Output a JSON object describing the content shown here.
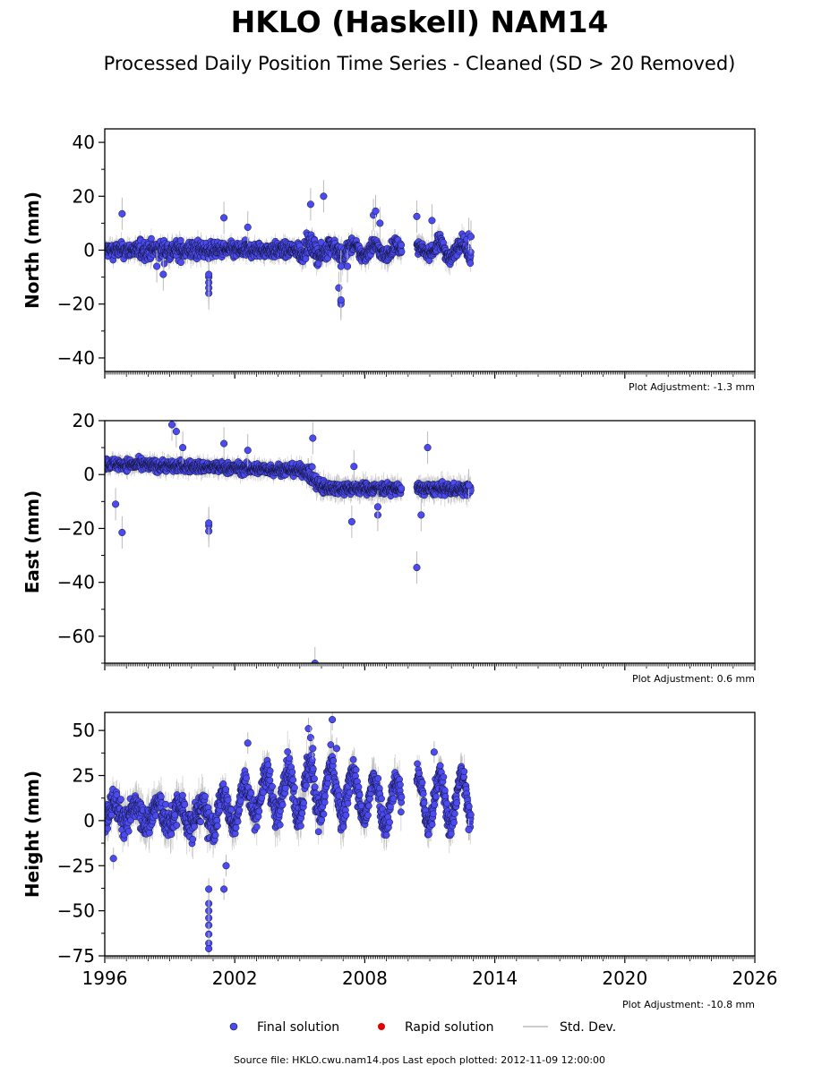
{
  "title": "HKLO (Haskell) NAM14",
  "subtitle": "Processed Daily Position Time Series - Cleaned (SD > 20 Removed)",
  "legend": {
    "final": "Final solution",
    "rapid": "Rapid solution",
    "std": "Std. Dev."
  },
  "source": "Source file: HKLO.cwu.nam14.pos  Last epoch plotted: 2012-11-09 12:00:00",
  "colors": {
    "final": "#4b4bf0",
    "rapid": "#e00000",
    "std": "#bbbbbb",
    "edge": "#111133"
  },
  "chart_data": [
    {
      "type": "scatter",
      "panel": "north",
      "ylabel": "North (mm)",
      "adjustment": "Plot Adjustment: -1.3 mm",
      "xlim": [
        1996,
        2026
      ],
      "ylim": [
        -45,
        45
      ],
      "yticks": [
        -40,
        -20,
        0,
        20,
        40
      ],
      "xticks": [
        1996,
        2002,
        2008,
        2014,
        2020,
        2026
      ],
      "series": [
        {
          "trend": [
            [
              1996,
              0
            ],
            [
              2012.86,
              0
            ]
          ],
          "points": [
            [
              1996.8,
              13.5
            ],
            [
              1998.7,
              -9
            ],
            [
              1998.4,
              -6
            ],
            [
              2000.8,
              -16
            ],
            [
              2000.8,
              -14
            ],
            [
              2000.8,
              -12
            ],
            [
              2000.8,
              -10
            ],
            [
              2000.8,
              -9
            ],
            [
              2001.5,
              12
            ],
            [
              2002.6,
              8.5
            ],
            [
              2005.5,
              17
            ],
            [
              2006.1,
              20
            ],
            [
              2006.8,
              -14
            ],
            [
              2006.9,
              -19
            ],
            [
              2006.9,
              -20
            ],
            [
              2006.9,
              -18.5
            ],
            [
              2006.9,
              -6
            ],
            [
              2007.2,
              -6
            ],
            [
              2008.4,
              13
            ],
            [
              2008.5,
              14.5
            ],
            [
              2008.7,
              10
            ],
            [
              2010.4,
              12.5
            ],
            [
              2011.1,
              11
            ],
            [
              2012.8,
              6
            ],
            [
              2012.9,
              5
            ]
          ],
          "segments": [
            [
              1996,
              1997.5,
              0,
              4,
              2
            ],
            [
              1997.5,
              2000.5,
              0,
              5,
              2.5
            ],
            [
              2000.5,
              2005,
              0,
              4,
              2
            ],
            [
              2005,
              2007,
              2,
              5,
              2.5
            ],
            [
              2007,
              2009.7,
              2,
              4,
              2.5
            ],
            [
              2010.4,
              2011.3,
              1,
              3,
              2.5
            ],
            [
              2011.3,
              2012.9,
              3,
              4,
              2.5
            ]
          ]
        }
      ]
    },
    {
      "type": "scatter",
      "panel": "east",
      "ylabel": "East (mm)",
      "adjustment": "Plot Adjustment: 0.6 mm",
      "xlim": [
        1996,
        2026
      ],
      "ylim": [
        -70,
        20
      ],
      "yticks": [
        -60,
        -40,
        -20,
        0,
        20
      ],
      "xticks": [
        1996,
        2002,
        2008,
        2014,
        2020,
        2026
      ],
      "series": [
        {
          "trend": [
            [
              1996,
              4
            ],
            [
              2005.3,
              1.5
            ],
            [
              2006,
              -5
            ],
            [
              2012.86,
              -5.5
            ]
          ],
          "points": [
            [
              1996.5,
              -11
            ],
            [
              1996.8,
              -21.5
            ],
            [
              1999.1,
              18.5
            ],
            [
              1999.3,
              16
            ],
            [
              1999.6,
              10
            ],
            [
              2000.8,
              -21
            ],
            [
              2000.8,
              -19
            ],
            [
              2000.8,
              -18
            ],
            [
              2001.5,
              11.5
            ],
            [
              2002.6,
              9
            ],
            [
              2005.6,
              13.5
            ],
            [
              2005.7,
              -70
            ],
            [
              2007.4,
              -17.5
            ],
            [
              2007.5,
              3
            ],
            [
              2008.6,
              -15
            ],
            [
              2008.6,
              -12
            ],
            [
              2010.4,
              -34.5
            ],
            [
              2010.6,
              -15
            ],
            [
              2010.9,
              10
            ],
            [
              2012.8,
              -4
            ]
          ],
          "segments": [
            [
              1996,
              2005.3,
              0,
              3,
              2
            ],
            [
              2005.3,
              2006.2,
              0,
              4,
              2.5
            ],
            [
              2006.2,
              2009.7,
              0,
              3,
              2.5
            ],
            [
              2010.4,
              2012.9,
              0,
              3,
              2.5
            ]
          ]
        }
      ]
    },
    {
      "type": "scatter",
      "panel": "height",
      "ylabel": "Height (mm)",
      "adjustment": "Plot Adjustment: -10.8 mm",
      "xlim": [
        1996,
        2026
      ],
      "ylim": [
        -75,
        60
      ],
      "yticks": [
        -75,
        -50,
        -25,
        0,
        25,
        50
      ],
      "xticks": [
        1996,
        2002,
        2008,
        2014,
        2020,
        2026
      ],
      "series": [
        {
          "trend": [
            [
              1996,
              5
            ],
            [
              2001,
              2
            ],
            [
              2003,
              14
            ],
            [
              2006,
              18
            ],
            [
              2009,
              10
            ],
            [
              2012.86,
              12
            ]
          ],
          "points": [
            [
              1996.4,
              -21
            ],
            [
              2000.8,
              -38
            ],
            [
              2000.8,
              -46
            ],
            [
              2000.8,
              -50
            ],
            [
              2000.8,
              -54
            ],
            [
              2000.8,
              -58
            ],
            [
              2000.8,
              -63
            ],
            [
              2000.8,
              -68
            ],
            [
              2000.8,
              -71
            ],
            [
              2001.5,
              -38
            ],
            [
              2001.6,
              -25
            ],
            [
              2002.6,
              43
            ],
            [
              2005.4,
              51
            ],
            [
              2005.5,
              46
            ],
            [
              2005.6,
              40
            ],
            [
              2006.5,
              56
            ],
            [
              2006.7,
              40
            ],
            [
              2011.2,
              38
            ],
            [
              2012.8,
              -5
            ]
          ],
          "segments": [
            [
              1996,
              1998,
              6,
              12,
              6
            ],
            [
              1998,
              2001,
              6,
              12,
              7
            ],
            [
              2001,
              2003.5,
              10,
              10,
              6
            ],
            [
              2003.5,
              2007.5,
              14,
              12,
              7
            ],
            [
              2007.5,
              2009.7,
              12,
              11,
              6
            ],
            [
              2010.4,
              2012.9,
              14,
              10,
              6
            ]
          ]
        }
      ]
    }
  ]
}
